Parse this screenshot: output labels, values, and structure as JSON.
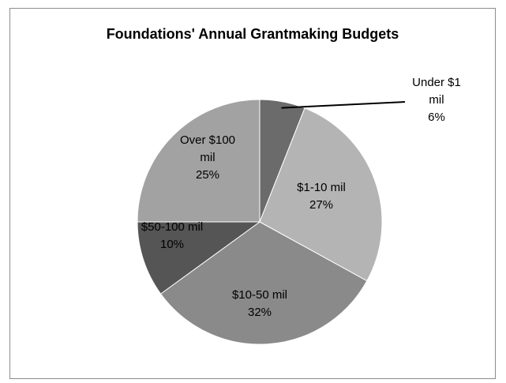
{
  "chart_data": {
    "type": "pie",
    "title": "Foundations' Annual Grantmaking Budgets",
    "slices": [
      {
        "label_lines": [
          "Under $1",
          "mil"
        ],
        "value": 6,
        "value_text": "6%",
        "color": "#6b6b6b"
      },
      {
        "label_lines": [
          "$1-10 mil"
        ],
        "value": 27,
        "value_text": "27%",
        "color": "#b4b4b4"
      },
      {
        "label_lines": [
          "$10-50 mil"
        ],
        "value": 32,
        "value_text": "32%",
        "color": "#8a8a8a"
      },
      {
        "label_lines": [
          "$50-100 mil"
        ],
        "value": 10,
        "value_text": "10%",
        "color": "#555555"
      },
      {
        "label_lines": [
          "Over $100",
          "mil"
        ],
        "value": 25,
        "value_text": "25%",
        "color": "#a2a2a2"
      }
    ],
    "start_angle": "12 o'clock",
    "direction": "clockwise",
    "legend": "none"
  }
}
